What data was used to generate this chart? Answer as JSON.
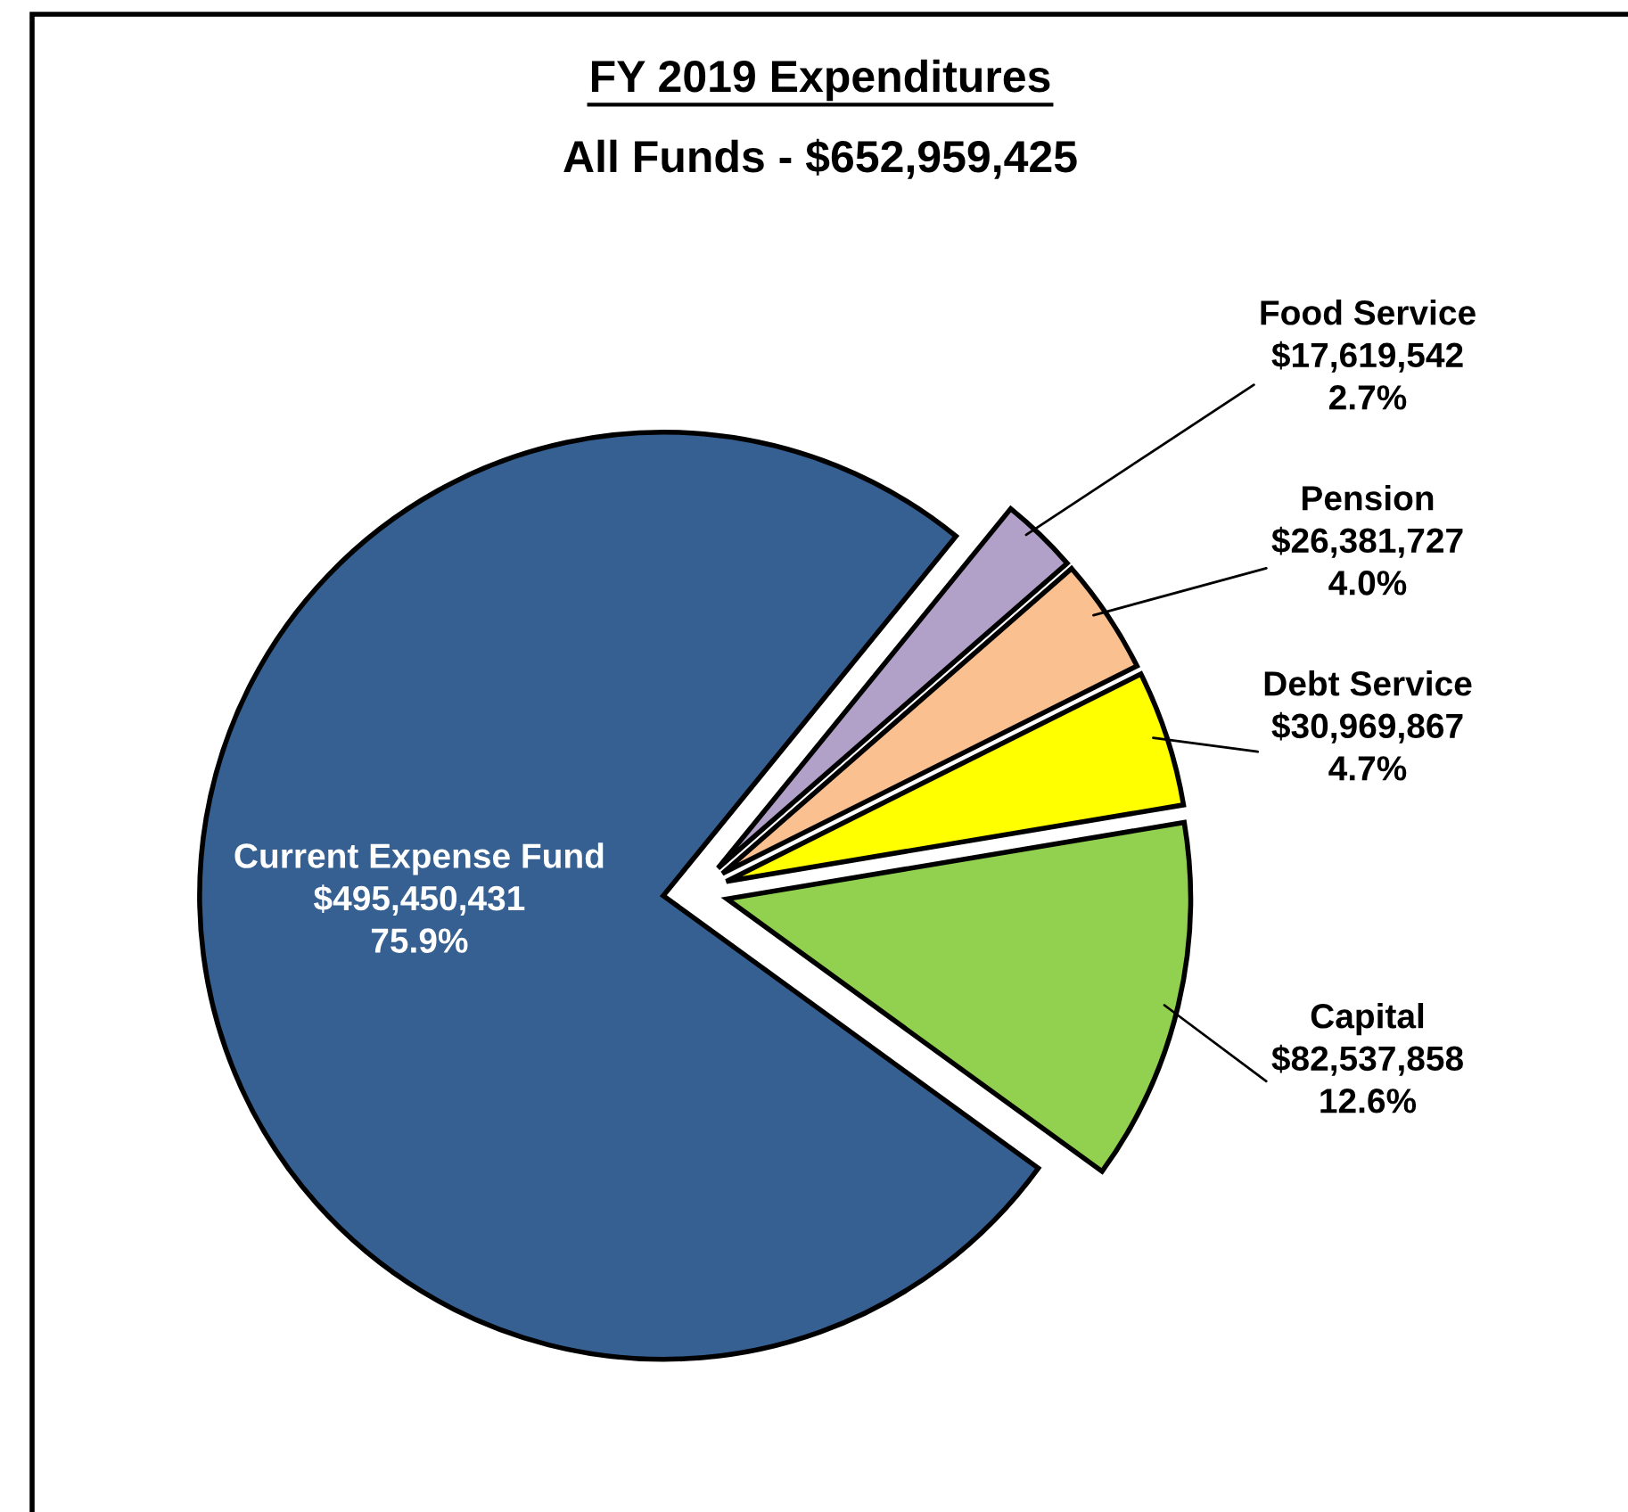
{
  "chart_data": {
    "type": "pie",
    "title": "FY 2019 Expenditures",
    "subtitle": "All Funds - $652,959,425",
    "categories": [
      "Capital",
      "Debt Service",
      "Pension",
      "Food Service",
      "Current Expense Fund"
    ],
    "values": [
      82537858,
      30969867,
      26381727,
      17619542,
      495450431
    ],
    "colors": [
      "#92d050",
      "#ffff00",
      "#fac090",
      "#b1a0c7",
      "#366092"
    ],
    "value_labels": [
      "$82,537,858\n12.6%",
      "$30,969,867\n4.7%",
      "$26,381,727\n4.0%",
      "$17,619,542\n2.7%",
      "$495,450,431\n75.9%"
    ]
  }
}
